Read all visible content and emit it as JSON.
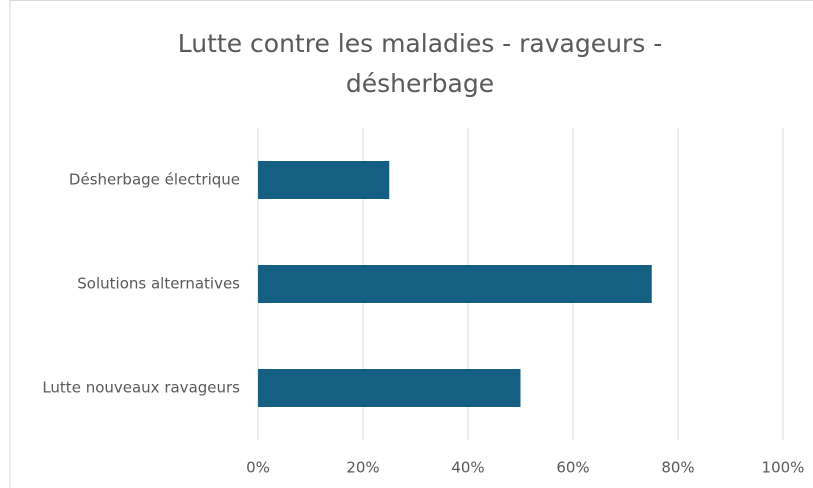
{
  "chart_data": {
    "type": "bar",
    "orientation": "horizontal",
    "title": "Lutte contre les maladies - ravageurs  - désherbage",
    "categories": [
      "Désherbage électrique",
      "Solutions alternatives",
      "Lutte nouveaux ravageurs"
    ],
    "values": [
      25,
      75,
      50
    ],
    "color": "#156082",
    "xlim": [
      0,
      100
    ],
    "xticks": [
      {
        "value": 0,
        "label": "0%"
      },
      {
        "value": 20,
        "label": "20%"
      },
      {
        "value": 40,
        "label": "40%"
      },
      {
        "value": 60,
        "label": "60%"
      },
      {
        "value": 80,
        "label": "80%"
      },
      {
        "value": 100,
        "label": "100%"
      }
    ],
    "grid": true
  }
}
